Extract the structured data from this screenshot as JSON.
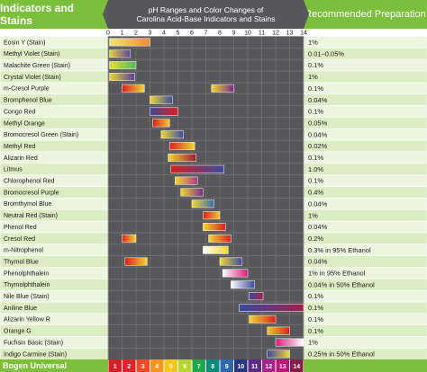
{
  "header": {
    "left_title": "Indicators and Stains",
    "center_line1": "pH Ranges and Color Changes of",
    "center_line2": "Carolina Acid-Base Indicators and Stains",
    "right_title": "Recommended Preparation"
  },
  "footer": {
    "brand": "Bogen Universal"
  },
  "colors": {
    "green": "#7bbf3c",
    "row_light": "#eef5df",
    "row_dark": "#dcecc4",
    "chart_bg": "#58585a",
    "grid": "#7a7a7c"
  },
  "chart_data": {
    "type": "range-bar",
    "xlim": [
      0,
      14
    ],
    "ticks": [
      "0",
      "1",
      "2",
      "3",
      "4",
      "5",
      "6",
      "7",
      "8",
      "9",
      "10",
      "11",
      "12",
      "13",
      "14"
    ],
    "indicators": [
      {
        "name": "Eosin Y (Stain)",
        "prep": "1%",
        "ranges": [
          {
            "from": 0.1,
            "to": 3.0,
            "colors": [
              "#f0e57a",
              "#f08a3a"
            ]
          }
        ]
      },
      {
        "name": "Methyl Violet (Stain)",
        "prep": "0.01–0.05%",
        "ranges": [
          {
            "from": 0.1,
            "to": 1.6,
            "colors": [
              "#e8d830",
              "#5b3ea0"
            ]
          }
        ]
      },
      {
        "name": "Malachite Green (Stain)",
        "prep": "0.1%",
        "ranges": [
          {
            "from": 0.1,
            "to": 2.0,
            "colors": [
              "#e6e030",
              "#50b860"
            ]
          }
        ]
      },
      {
        "name": "Crystal Violet (Stain)",
        "prep": "1%",
        "ranges": [
          {
            "from": 0.1,
            "to": 1.9,
            "colors": [
              "#e8d830",
              "#5b3ea0"
            ]
          }
        ]
      },
      {
        "name": "m-Cresol Purple",
        "prep": "0.1%",
        "ranges": [
          {
            "from": 1.0,
            "to": 2.6,
            "colors": [
              "#d8201e",
              "#f0d830"
            ]
          },
          {
            "from": 7.4,
            "to": 9.0,
            "colors": [
              "#f0d830",
              "#7a2a8a"
            ]
          }
        ]
      },
      {
        "name": "Bromphenol Blue",
        "prep": "0.04%",
        "ranges": [
          {
            "from": 3.0,
            "to": 4.6,
            "colors": [
              "#f0d830",
              "#3a4aa0"
            ]
          }
        ]
      },
      {
        "name": "Congo Red",
        "prep": "0.1%",
        "ranges": [
          {
            "from": 3.0,
            "to": 5.0,
            "colors": [
              "#3a4aa0",
              "#d8201e"
            ]
          }
        ]
      },
      {
        "name": "Methyl Orange",
        "prep": "0.05%",
        "ranges": [
          {
            "from": 3.2,
            "to": 4.4,
            "colors": [
              "#d8201e",
              "#f0c830"
            ]
          }
        ]
      },
      {
        "name": "Bromocresol Green (Stain)",
        "prep": "0.04%",
        "ranges": [
          {
            "from": 3.8,
            "to": 5.4,
            "colors": [
              "#f0d830",
              "#3a4aa0"
            ]
          }
        ]
      },
      {
        "name": "Methyl Red",
        "prep": "0.02%",
        "ranges": [
          {
            "from": 4.4,
            "to": 6.2,
            "colors": [
              "#d8201e",
              "#f0d830"
            ]
          }
        ]
      },
      {
        "name": "Alizarin Red",
        "prep": "0.1%",
        "ranges": [
          {
            "from": 4.3,
            "to": 6.3,
            "colors": [
              "#f0d830",
              "#a01838"
            ]
          }
        ]
      },
      {
        "name": "Litmus",
        "prep": "1.0%",
        "ranges": [
          {
            "from": 4.5,
            "to": 8.3,
            "colors": [
              "#d8201e",
              "#3a4aa0"
            ]
          }
        ]
      },
      {
        "name": "Chlorophenol Red",
        "prep": "0.1%",
        "ranges": [
          {
            "from": 4.8,
            "to": 6.4,
            "colors": [
              "#f0d830",
              "#b03a8a"
            ]
          }
        ]
      },
      {
        "name": "Bromocresol Purple",
        "prep": "0.4%",
        "ranges": [
          {
            "from": 5.2,
            "to": 6.8,
            "colors": [
              "#f0d830",
              "#7a2a8a"
            ]
          }
        ]
      },
      {
        "name": "Bromthymol Blue",
        "prep": "0.04%",
        "ranges": [
          {
            "from": 6.0,
            "to": 7.6,
            "colors": [
              "#f0d830",
              "#3a6ab0"
            ]
          }
        ]
      },
      {
        "name": "Neutral Red (Stain)",
        "prep": "1%",
        "ranges": [
          {
            "from": 6.8,
            "to": 8.0,
            "colors": [
              "#d8201e",
              "#f0c830"
            ]
          }
        ]
      },
      {
        "name": "Phenol Red",
        "prep": "0.04%",
        "ranges": [
          {
            "from": 6.8,
            "to": 8.4,
            "colors": [
              "#f0d830",
              "#d8201e"
            ]
          }
        ]
      },
      {
        "name": "Cresol Red",
        "prep": "0.2%",
        "ranges": [
          {
            "from": 1.0,
            "to": 2.0,
            "colors": [
              "#d8201e",
              "#f0d830"
            ]
          },
          {
            "from": 7.2,
            "to": 8.8,
            "colors": [
              "#f0d830",
              "#d8201e"
            ]
          }
        ]
      },
      {
        "name": "m-Nitrophenol",
        "prep": "0.3% in 95% Ethanol",
        "ranges": [
          {
            "from": 6.8,
            "to": 8.6,
            "colors": [
              "#ffffff",
              "#f0d830"
            ]
          }
        ]
      },
      {
        "name": "Thymol Blue",
        "prep": "0.04%",
        "ranges": [
          {
            "from": 1.2,
            "to": 2.8,
            "colors": [
              "#d8201e",
              "#f0d830"
            ]
          },
          {
            "from": 8.0,
            "to": 9.6,
            "colors": [
              "#f0d830",
              "#3a4aa0"
            ]
          }
        ]
      },
      {
        "name": "Phenolphthalein",
        "prep": "1% in 95% Ethanol",
        "ranges": [
          {
            "from": 8.2,
            "to": 10.0,
            "colors": [
              "#ffffff",
              "#d81a7a"
            ]
          }
        ]
      },
      {
        "name": "Thymolphthalein",
        "prep": "0.04% in 50% Ethanol",
        "ranges": [
          {
            "from": 8.8,
            "to": 10.5,
            "colors": [
              "#ffffff",
              "#3a4aa0"
            ]
          }
        ]
      },
      {
        "name": "Nile Blue (Stain)",
        "prep": "0.1%",
        "ranges": [
          {
            "from": 10.1,
            "to": 11.1,
            "colors": [
              "#3a4aa0",
              "#a0204a"
            ]
          }
        ]
      },
      {
        "name": "Aniline Blue",
        "prep": "0.1%",
        "ranges": [
          {
            "from": 9.4,
            "to": 14.0,
            "colors": [
              "#3a4aa0",
              "#a0204a"
            ]
          }
        ]
      },
      {
        "name": "Alizarin Yellow R",
        "prep": "0.1%",
        "ranges": [
          {
            "from": 10.1,
            "to": 12.0,
            "colors": [
              "#f0d830",
              "#d8201e"
            ]
          }
        ]
      },
      {
        "name": "Orange G",
        "prep": "0.1%",
        "ranges": [
          {
            "from": 11.4,
            "to": 13.0,
            "colors": [
              "#f0c830",
              "#d8201e"
            ]
          }
        ]
      },
      {
        "name": "Fuchsin Basic (Stain)",
        "prep": "1%",
        "ranges": [
          {
            "from": 12.0,
            "to": 14.0,
            "colors": [
              "#d81a7a",
              "#ffffff"
            ]
          }
        ]
      },
      {
        "name": "Indigo Carmine (Stain)",
        "prep": "0.25% in 50% Ethanol",
        "ranges": [
          {
            "from": 11.4,
            "to": 13.0,
            "colors": [
              "#3a4aa0",
              "#f0d830"
            ]
          }
        ]
      }
    ],
    "scale": {
      "labels": [
        "1",
        "2",
        "3",
        "4",
        "5",
        "6",
        "7",
        "8",
        "9",
        "10",
        "11",
        "12",
        "13",
        "14"
      ],
      "colors": [
        "#d41f26",
        "#e2232e",
        "#ec4a2a",
        "#f7941d",
        "#f5c518",
        "#b7d433",
        "#1fa64a",
        "#0a8a7a",
        "#2e67b2",
        "#28347e",
        "#5b2b86",
        "#a8228c",
        "#c2127a",
        "#8a1c4a"
      ]
    }
  }
}
